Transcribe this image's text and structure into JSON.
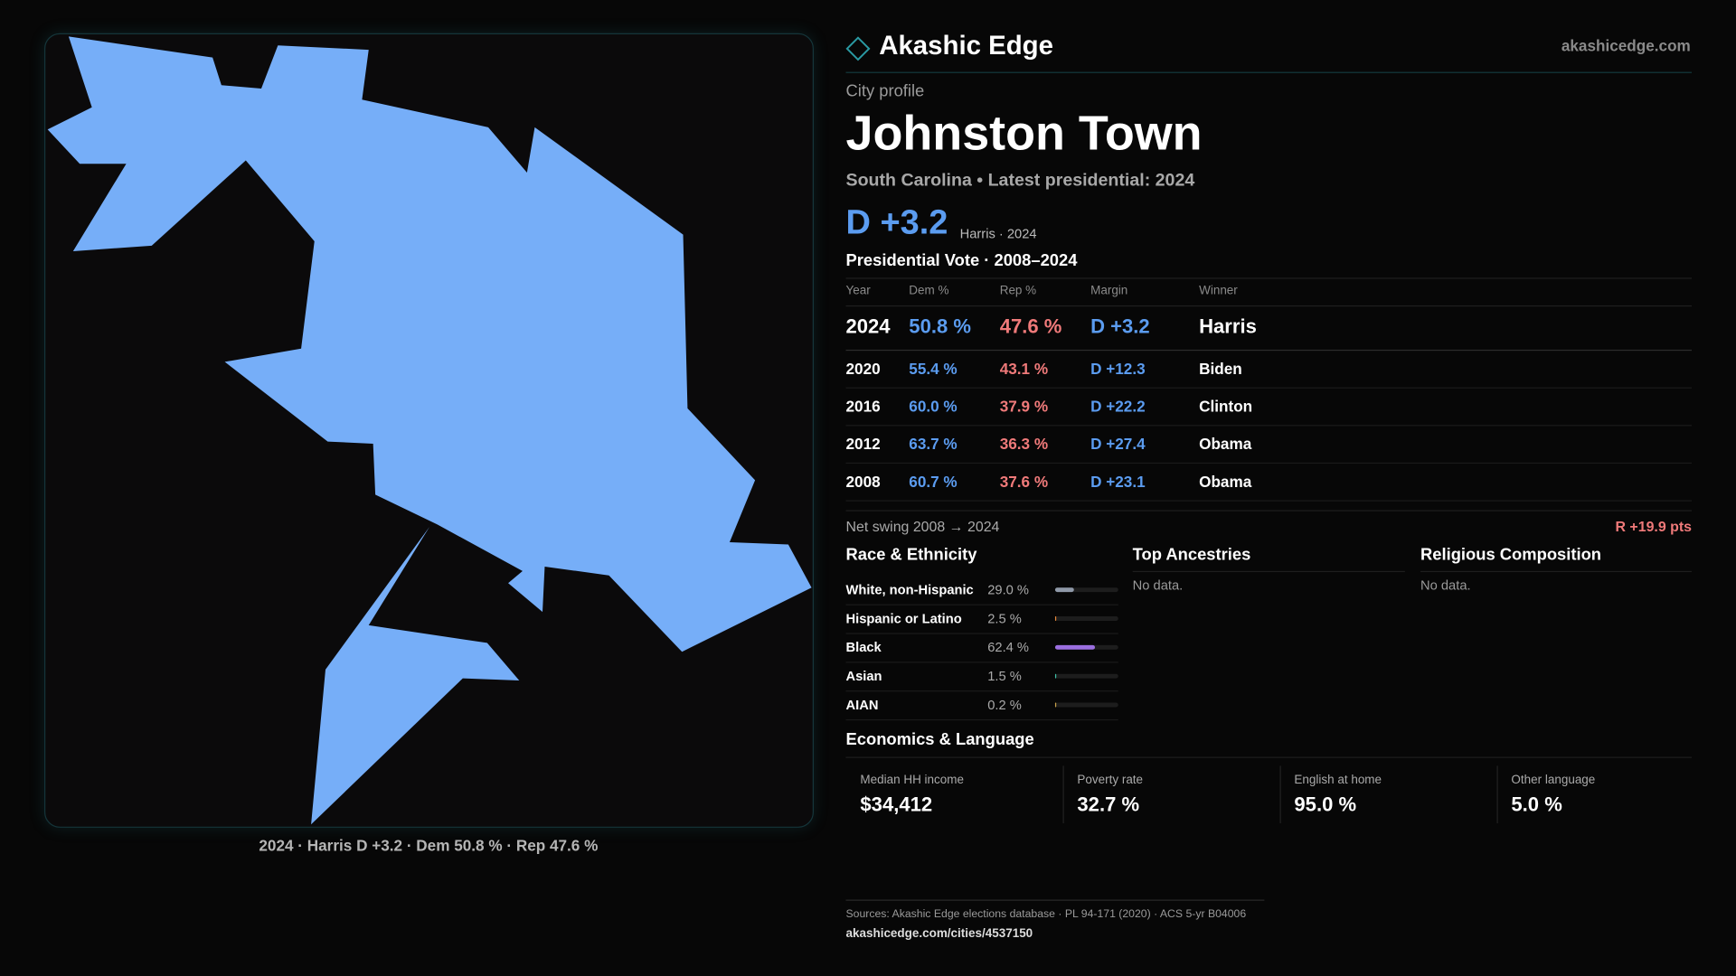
{
  "header": {
    "brand": "Akashic Edge",
    "site": "akashicedge.com"
  },
  "map": {
    "caption": "2024 · Harris D +3.2 · Dem 50.8 % · Rep 47.6 %"
  },
  "profile": {
    "kicker": "City profile",
    "title": "Johnston Town",
    "subtitle": "South Carolina • Latest presidential: 2024",
    "margin": "D +3.2",
    "margin_note": "Harris · 2024"
  },
  "vote_table": {
    "title": "Presidential Vote · 2008–2024",
    "columns": [
      "Year",
      "Dem %",
      "Rep %",
      "Margin",
      "Winner"
    ],
    "rows": [
      [
        "2024",
        "50.8 %",
        "47.6 %",
        "D +3.2",
        "Harris"
      ],
      [
        "2020",
        "55.4 %",
        "43.1 %",
        "D +12.3",
        "Biden"
      ],
      [
        "2016",
        "60.0 %",
        "37.9 %",
        "D +22.2",
        "Clinton"
      ],
      [
        "2012",
        "63.7 %",
        "36.3 %",
        "D +27.4",
        "Obama"
      ],
      [
        "2008",
        "60.7 %",
        "37.6 %",
        "D +23.1",
        "Obama"
      ]
    ]
  },
  "swing": {
    "label": "Net swing 2008 → 2024",
    "value": "R +19.9 pts"
  },
  "race": {
    "title": "Race & Ethnicity",
    "rows": [
      {
        "label": "White, non-Hispanic",
        "value": 29.0,
        "value_label": "29.0 %",
        "color": "#8f99a8"
      },
      {
        "label": "Hispanic or Latino",
        "value": 2.5,
        "value_label": "2.5 %",
        "color": "#e8893a"
      },
      {
        "label": "Black",
        "value": 62.4,
        "value_label": "62.4 %",
        "color": "#9b6fe0"
      },
      {
        "label": "Asian",
        "value": 1.5,
        "value_label": "1.5 %",
        "color": "#3fc0a8"
      },
      {
        "label": "AIAN",
        "value": 0.2,
        "value_label": "0.2 %",
        "color": "#c9a24a"
      }
    ]
  },
  "ancestries": {
    "title": "Top Ancestries",
    "note": "No data."
  },
  "religion": {
    "title": "Religious Composition",
    "note": "No data."
  },
  "economics": {
    "title": "Economics & Language",
    "stats": [
      {
        "label": "Median HH income",
        "value": "$34,412"
      },
      {
        "label": "Poverty rate",
        "value": "32.7 %"
      },
      {
        "label": "English at home",
        "value": "95.0 %"
      },
      {
        "label": "Other language",
        "value": "5.0 %"
      }
    ]
  },
  "footer": {
    "sources": "Sources: Akashic Edge elections database · PL 94-171 (2020) · ACS 5-yr B04006",
    "url": "akashicedge.com/cities/4537150"
  }
}
